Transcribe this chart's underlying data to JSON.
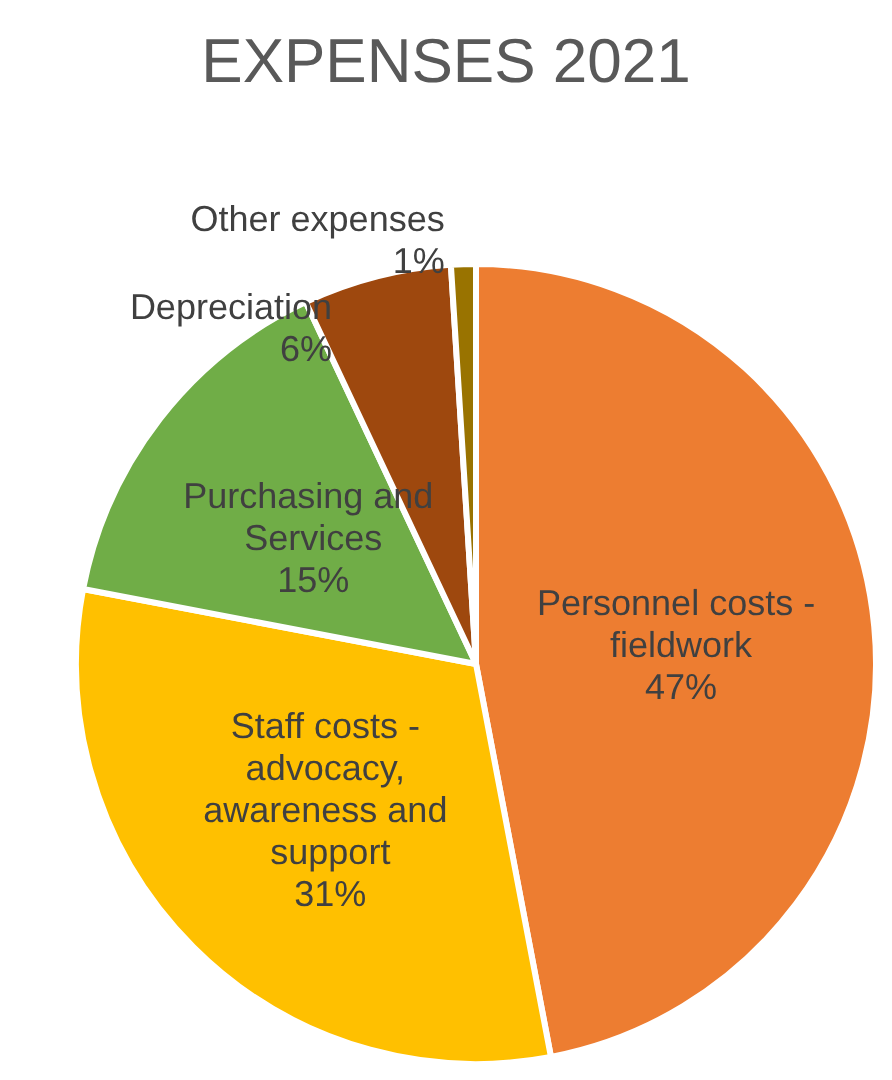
{
  "chart_data": {
    "type": "pie",
    "title": "EXPENSES 2021",
    "categories": [
      "Personnel costs - fieldwork",
      "Staff costs - advocacy, awareness and support",
      "Purchasing and Services",
      "Depreciation",
      "Other expenses"
    ],
    "values": [
      47,
      31,
      15,
      6,
      1
    ],
    "colors": [
      "#ed7d31",
      "#ffc000",
      "#70ad47",
      "#9e480e",
      "#997300"
    ],
    "value_labels": [
      "47%",
      "31%",
      "15%",
      "6%",
      "1%"
    ]
  }
}
